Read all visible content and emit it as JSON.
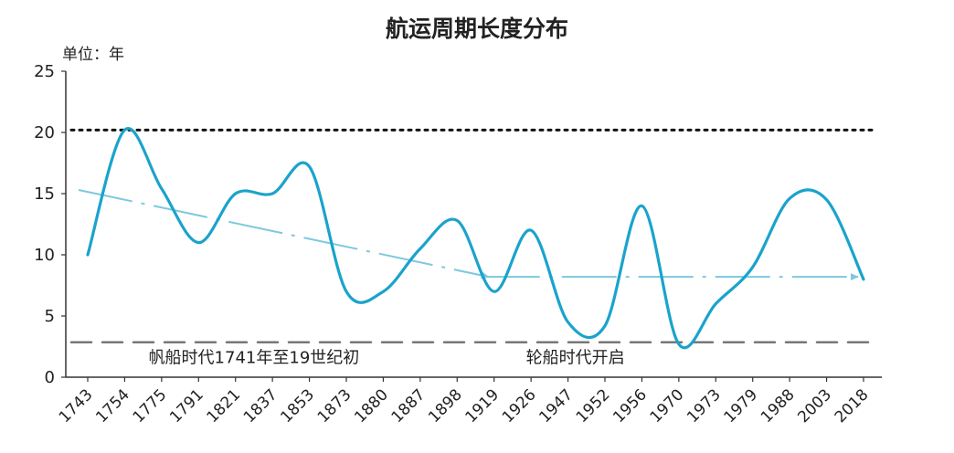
{
  "chart_data": {
    "type": "line",
    "title": "航运周期长度分布",
    "unit_label": "单位：年",
    "ylim": [
      0,
      25
    ],
    "yticks": [
      0,
      5,
      10,
      15,
      20,
      25
    ],
    "categories": [
      "1743",
      "1754",
      "1775",
      "1791",
      "1821",
      "1837",
      "1853",
      "1873",
      "1880",
      "1887",
      "1898",
      "1919",
      "1926",
      "1947",
      "1952",
      "1956",
      "1970",
      "1973",
      "1979",
      "1988",
      "2003",
      "2018"
    ],
    "series": [
      {
        "values": [
          10.0,
          20.2,
          15.4,
          11.0,
          15.0,
          15.0,
          17.2,
          7.0,
          7.0,
          10.5,
          12.8,
          7.0,
          12.0,
          4.5,
          4.2,
          14.0,
          2.7,
          6.0,
          9.0,
          14.6,
          14.5,
          8.0
        ],
        "color": "#1aa3cc"
      }
    ],
    "reference_lines": [
      {
        "y": 20.2,
        "style": "dotted",
        "color": "#111111"
      },
      {
        "y": 2.85,
        "style": "dashed",
        "color": "#777777"
      }
    ],
    "trend_arrows": [
      {
        "from_index": 0,
        "from_y": 15.3,
        "to_index": 11,
        "to_y": 8.2
      },
      {
        "from_index": 11,
        "from_y": 8.2,
        "to_index": 21,
        "to_y": 8.2
      }
    ],
    "annotations": [
      {
        "text": "帆船时代1741年至19世纪初",
        "at_index": 4.5,
        "y": 1.3
      },
      {
        "text": "轮船时代开启",
        "at_index": 13.2,
        "y": 1.3
      }
    ]
  }
}
